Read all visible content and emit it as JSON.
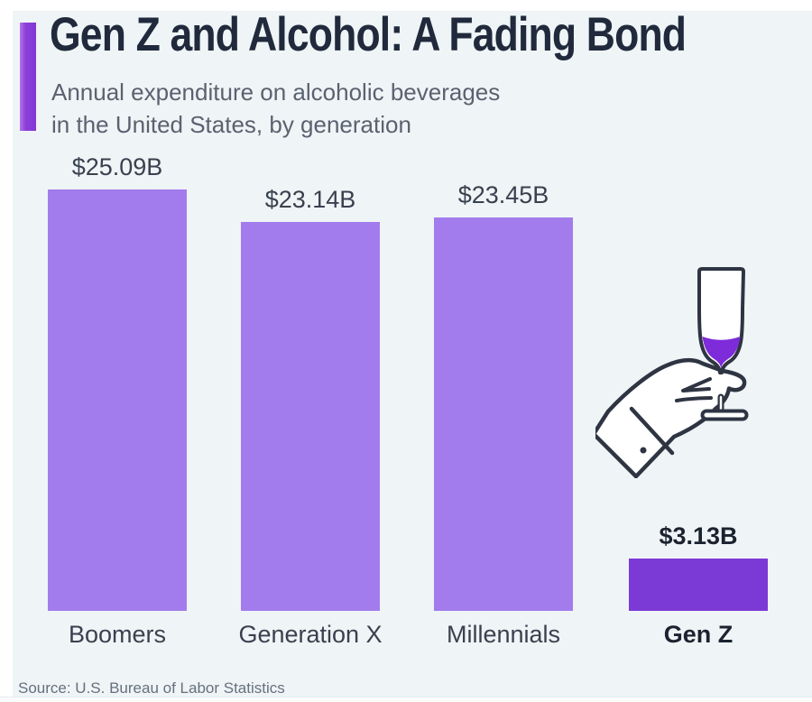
{
  "header": {
    "title": "Gen Z and Alcohol: A Fading Bond",
    "subtitle_line1": "Annual expenditure on alcoholic beverages",
    "subtitle_line2": "in the United States, by generation"
  },
  "footer": {
    "source": "Source: U.S. Bureau of Labor Statistics"
  },
  "icons": {
    "hand_glass": "hand-holding-champagne-flute-with-purple-drink"
  },
  "colors": {
    "background": "#EFF4F6",
    "accent_bar": "#8C3FDA",
    "bar": "#A27CEC",
    "bar_highlight": "#7B3AD6",
    "title_text": "#202A3C",
    "subtitle_text": "#5A6270",
    "label_text": "#39414F",
    "highlight_label_text": "#1B2330",
    "source_text": "#66707E",
    "illustration_stroke": "#2E3442",
    "drink_fill": "#7E2BD9"
  },
  "chart_data": {
    "type": "bar",
    "title": "Gen Z and Alcohol: A Fading Bond",
    "subtitle": "Annual expenditure on alcoholic beverages in the United States, by generation",
    "categories": [
      "Boomers",
      "Generation X",
      "Millennials",
      "Gen Z"
    ],
    "values": [
      25.09,
      23.14,
      23.45,
      3.13
    ],
    "value_labels": [
      "$25.09B",
      "$23.14B",
      "$23.45B",
      "$3.13B"
    ],
    "unit": "billion US dollars",
    "highlight_index": 3,
    "ylim": [
      0,
      25.09
    ],
    "axes_shown": false,
    "grid": false,
    "legend": "none",
    "data_label_position": "above-bar"
  }
}
